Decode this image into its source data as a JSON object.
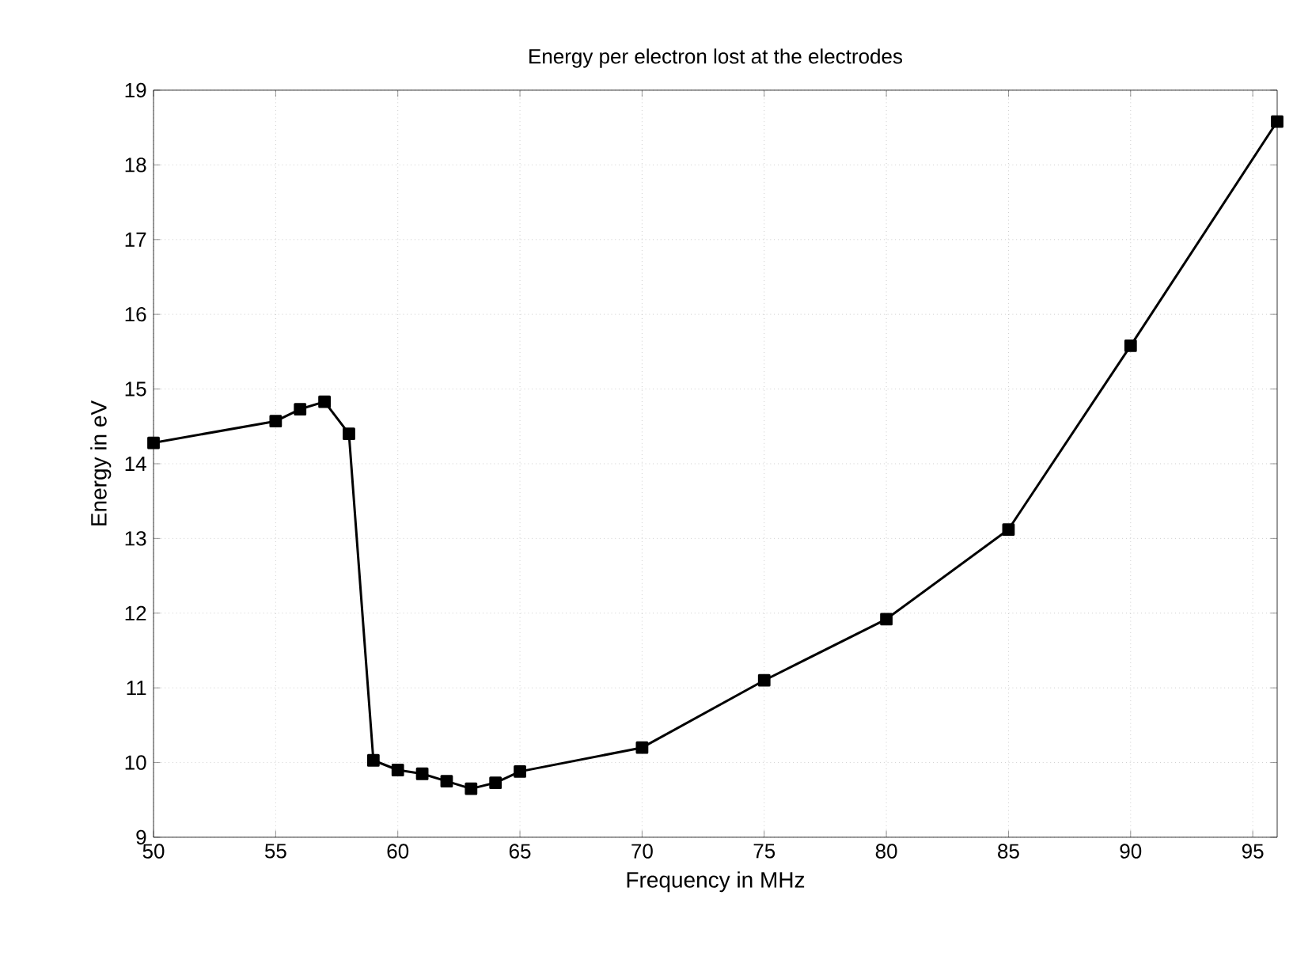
{
  "chart_data": {
    "type": "line",
    "title": "Energy per electron lost at the electrodes",
    "xlabel": "Frequency in MHz",
    "ylabel": "Energy in eV",
    "x": [
      50,
      55,
      56,
      57,
      58,
      59,
      60,
      61,
      62,
      63,
      64,
      65,
      70,
      75,
      80,
      85,
      90,
      96
    ],
    "series": [
      {
        "color": "#000000",
        "values": [
          14.28,
          14.57,
          14.73,
          14.83,
          14.4,
          10.03,
          9.9,
          9.85,
          9.75,
          9.65,
          9.73,
          9.88,
          10.2,
          11.1,
          11.92,
          13.12,
          15.58,
          18.58
        ]
      }
    ],
    "xlim": [
      50,
      96
    ],
    "ylim": [
      9,
      19
    ],
    "xticks": [
      50,
      55,
      60,
      65,
      70,
      75,
      80,
      85,
      90,
      95
    ],
    "yticks": [
      9,
      10,
      11,
      12,
      13,
      14,
      15,
      16,
      17,
      18,
      19
    ],
    "grid": true,
    "marker": "square",
    "line_style": "solid"
  }
}
